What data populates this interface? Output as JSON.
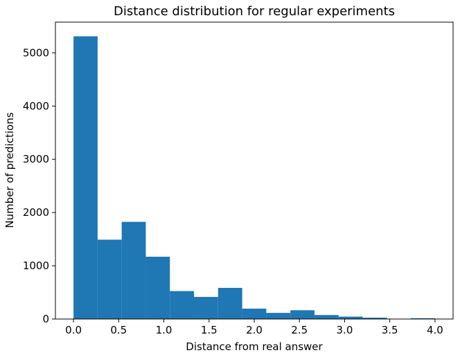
{
  "chart_data": {
    "type": "bar",
    "title": "Distance distribution for regular experiments",
    "xlabel": "Distance from real answer",
    "ylabel": "Number of predictions",
    "bin_edges": [
      0.0,
      0.2667,
      0.5333,
      0.8,
      1.0667,
      1.3333,
      1.6,
      1.8667,
      2.1333,
      2.4,
      2.6667,
      2.9333,
      3.2,
      3.4667,
      3.7333,
      4.0
    ],
    "values": [
      5310,
      1490,
      1825,
      1170,
      525,
      415,
      585,
      195,
      115,
      165,
      75,
      45,
      25,
      0,
      15
    ],
    "xlim": [
      -0.2,
      4.2
    ],
    "ylim": [
      0,
      5576
    ],
    "xticks": [
      0.0,
      0.5,
      1.0,
      1.5,
      2.0,
      2.5,
      3.0,
      3.5,
      4.0
    ],
    "xtick_labels": [
      "0.0",
      "0.5",
      "1.0",
      "1.5",
      "2.0",
      "2.5",
      "3.0",
      "3.5",
      "4.0"
    ],
    "yticks": [
      0,
      1000,
      2000,
      3000,
      4000,
      5000
    ],
    "ytick_labels": [
      "0",
      "1000",
      "2000",
      "3000",
      "4000",
      "5000"
    ],
    "bar_color": "#1f77b4",
    "grid": false,
    "legend": "none"
  }
}
